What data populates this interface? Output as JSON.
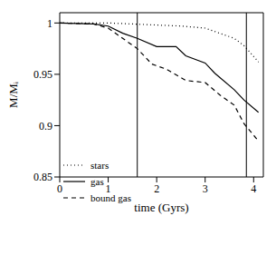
{
  "chart_data": {
    "type": "line",
    "x_label": "time (Gyrs)",
    "y_label": "M/Mᵢ",
    "xlim": [
      0,
      4.2
    ],
    "xticks": [
      0,
      1,
      2,
      3,
      4
    ],
    "ylim": [
      0.85,
      1.01
    ],
    "yticks": [
      0.85,
      0.9,
      0.95,
      1
    ],
    "legend": "lower left",
    "vlines": [
      1.6,
      3.85
    ],
    "series": [
      {
        "name": "stars",
        "color": "#000000",
        "line_style": "dotted",
        "x": [
          0,
          1,
          2,
          2.5,
          3,
          3.3,
          3.6,
          3.8,
          4.1
        ],
        "values": [
          1,
          1,
          0.998,
          0.997,
          0.995,
          0.99,
          0.985,
          0.978,
          0.962
        ]
      },
      {
        "name": "gas",
        "color": "#000000",
        "line_style": "solid",
        "x": [
          0,
          0.7,
          1,
          1.3,
          1.6,
          2,
          2.4,
          2.6,
          3,
          3.2,
          3.6,
          3.8,
          4.1
        ],
        "values": [
          1,
          0.999,
          0.997,
          0.99,
          0.985,
          0.977,
          0.977,
          0.968,
          0.961,
          0.951,
          0.935,
          0.925,
          0.913
        ]
      },
      {
        "name": "bound gas",
        "color": "#000000",
        "line_style": "dashed",
        "x": [
          0,
          0.7,
          1,
          1.3,
          1.6,
          1.9,
          2.2,
          2.6,
          3,
          3.3,
          3.6,
          3.8,
          4.1
        ],
        "values": [
          1,
          0.999,
          0.995,
          0.985,
          0.975,
          0.96,
          0.955,
          0.944,
          0.942,
          0.93,
          0.92,
          0.902,
          0.885
        ]
      }
    ]
  }
}
